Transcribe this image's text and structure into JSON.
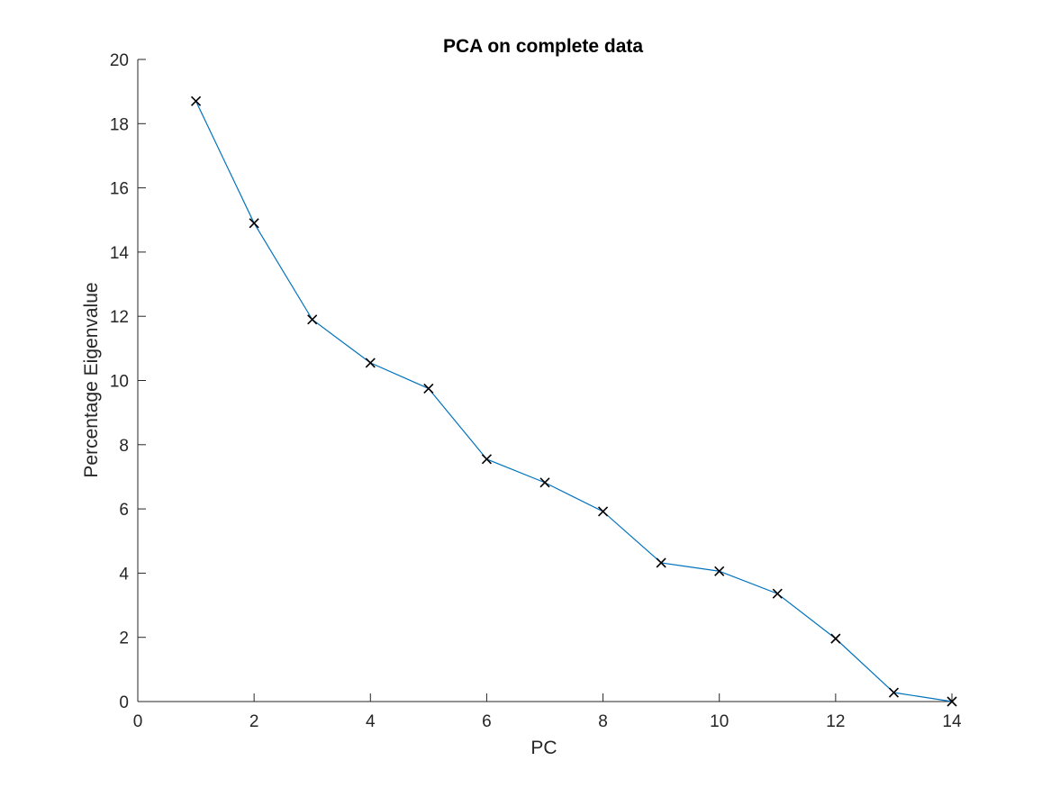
{
  "chart_data": {
    "type": "line",
    "title": "PCA on complete data",
    "xlabel": "PC",
    "ylabel": "Percentage Eigenvalue",
    "xlim": [
      0,
      14
    ],
    "ylim": [
      0,
      20
    ],
    "xticks": [
      0,
      2,
      4,
      6,
      8,
      10,
      12,
      14
    ],
    "yticks": [
      0,
      2,
      4,
      6,
      8,
      10,
      12,
      14,
      16,
      18,
      20
    ],
    "grid": false,
    "legend": "none",
    "marker": "x",
    "series": [
      {
        "x": [
          1,
          2,
          3,
          4,
          5,
          6,
          7,
          8,
          9,
          10,
          11,
          12,
          13,
          14
        ],
        "values": [
          18.7,
          14.9,
          11.9,
          10.55,
          9.75,
          7.55,
          6.82,
          5.92,
          4.32,
          4.06,
          3.36,
          1.96,
          0.28,
          0.0
        ]
      }
    ],
    "colors": {
      "line": "#0072BD",
      "marker": "#000000",
      "axis": "#262626"
    }
  }
}
